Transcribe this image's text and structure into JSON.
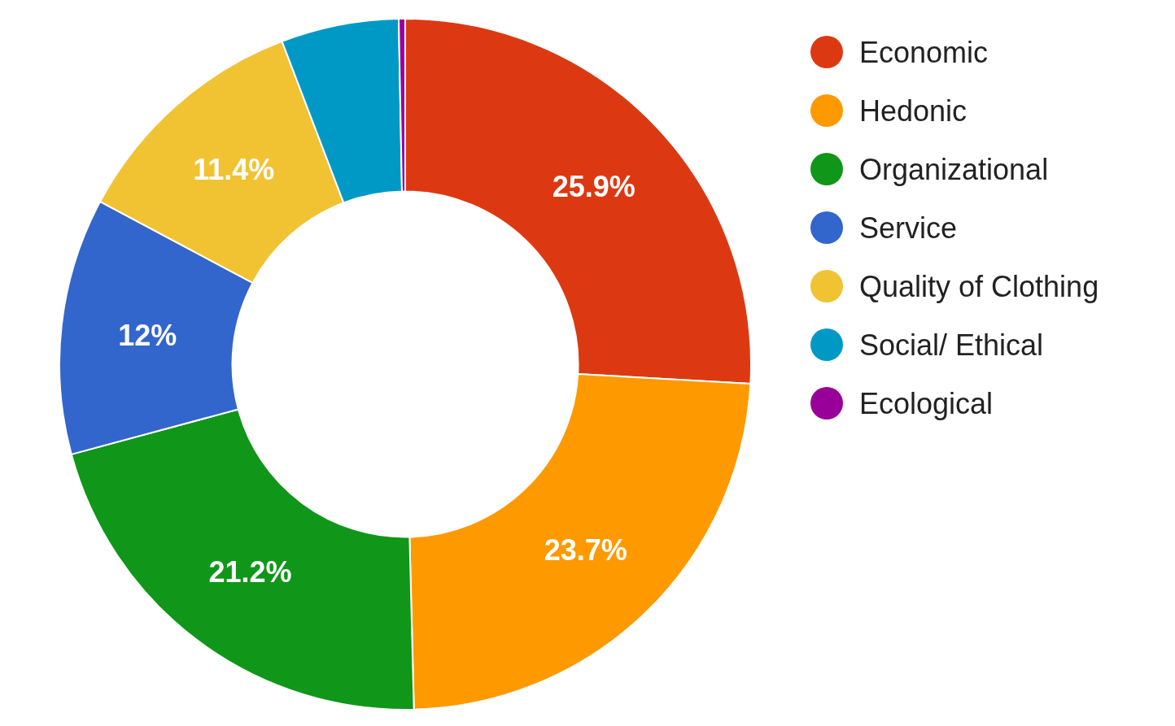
{
  "chart_data": {
    "type": "donut",
    "categories": [
      "Economic",
      "Hedonic",
      "Organizational",
      "Service",
      "Quality of Clothing",
      "Social/ Ethical",
      "Ecological"
    ],
    "values": [
      25.9,
      23.7,
      21.2,
      12,
      11.4,
      5.5,
      0.3
    ],
    "value_labels": [
      "25.9%",
      "23.7%",
      "21.2%",
      "12%",
      "11.4%",
      null,
      null
    ],
    "colors": [
      "#dc3912",
      "#ff9900",
      "#109618",
      "#3366cc",
      "#f1c232",
      "#0099c6",
      "#990099"
    ],
    "legend": "right"
  }
}
